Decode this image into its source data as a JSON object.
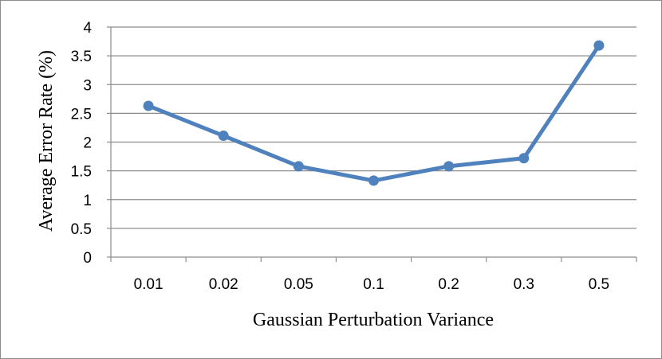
{
  "chart_data": {
    "type": "line",
    "title": "",
    "xlabel": "Gaussian Perturbation Variance",
    "ylabel": "Average Error Rate (%)",
    "categories": [
      "0.01",
      "0.02",
      "0.05",
      "0.1",
      "0.2",
      "0.3",
      "0.5"
    ],
    "series": [
      {
        "values": [
          2.63,
          2.11,
          1.58,
          1.33,
          1.58,
          1.72,
          3.68
        ]
      }
    ],
    "ylim": [
      0,
      4
    ],
    "yticks": [
      0,
      0.5,
      1,
      1.5,
      2,
      2.5,
      3,
      3.5,
      4
    ],
    "ytick_labels": [
      "0",
      "0.5",
      "1",
      "1.5",
      "2",
      "2.5",
      "3",
      "3.5",
      "4"
    ],
    "grid": true,
    "legend": "none",
    "colors": {
      "line": "#4f81bd",
      "marker": "#4f81bd",
      "grid": "#8c8c8c",
      "axis": "#8c8c8c",
      "border": "#8c8c8c"
    }
  }
}
